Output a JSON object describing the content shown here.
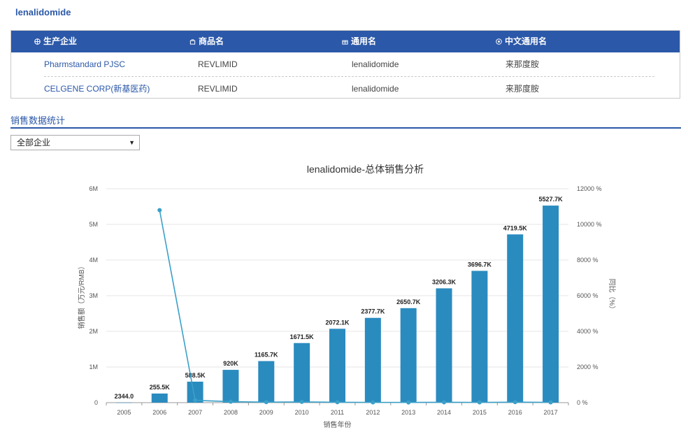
{
  "drug": {
    "title": "lenalidomide"
  },
  "table": {
    "headers": [
      "生产企业",
      "商品名",
      "通用名",
      "中文通用名"
    ],
    "rows": [
      [
        "Pharmstandard PJSC",
        "REVLIMID",
        "lenalidomide",
        "来那度胺"
      ],
      [
        "CELGENE CORP(新基医药)",
        "REVLIMID",
        "lenalidomide",
        "来那度胺"
      ]
    ]
  },
  "section": {
    "title": "销售数据统计"
  },
  "filter": {
    "selected": "全部企业"
  },
  "colors": {
    "brand": "#2b58a8",
    "bar": "#2a8bbf",
    "bar_top": "#59c6ea",
    "line": "#3aa0c9"
  },
  "chart_data": {
    "type": "bar",
    "title": "lenalidomide-总体销售分析",
    "xlabel": "销售年份",
    "ylabel": "销售额（万元/RMB）",
    "y2label": "同比（%）",
    "categories": [
      "2005",
      "2006",
      "2007",
      "2008",
      "2009",
      "2010",
      "2011",
      "2012",
      "2013",
      "2014",
      "2015",
      "2016",
      "2017"
    ],
    "series": [
      {
        "type": "bar",
        "values": [
          2344,
          255500,
          588500,
          920000,
          1165700,
          1671500,
          2072100,
          2377700,
          2650700,
          3206300,
          3696700,
          4719500,
          5527700
        ]
      },
      {
        "type": "line",
        "axis": "right",
        "values": [
          null,
          10800,
          130,
          56,
          27,
          43,
          24,
          15,
          11,
          21,
          15,
          28,
          17
        ]
      }
    ],
    "data_labels": [
      "2344.0",
      "255.5K",
      "588.5K",
      "920K",
      "1165.7K",
      "1671.5K",
      "2072.1K",
      "2377.7K",
      "2650.7K",
      "3206.3K",
      "3696.7K",
      "4719.5K",
      "5527.7K"
    ],
    "ylim": [
      0,
      6000000
    ],
    "y_ticks": [
      "0",
      "1M",
      "2M",
      "3M",
      "4M",
      "5M",
      "6M"
    ],
    "y2lim": [
      0,
      12000
    ],
    "y2_ticks": [
      "0 %",
      "2000 %",
      "4000 %",
      "6000 %",
      "8000 %",
      "10000 %",
      "12000 %"
    ],
    "grid": true
  }
}
